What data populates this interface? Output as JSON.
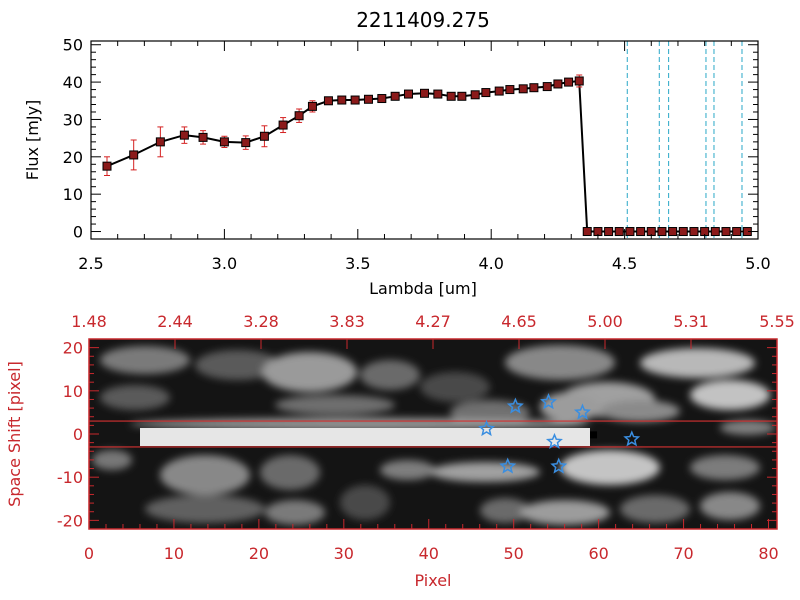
{
  "chart_data": [
    {
      "type": "line",
      "title": "2211409.275",
      "xlabel": "Lambda [um]",
      "ylabel": "Flux [mJy]",
      "xlim": [
        2.5,
        5.0
      ],
      "ylim": [
        -2,
        51
      ],
      "xticks": [
        "2.5",
        "3.0",
        "3.5",
        "4.0",
        "4.5",
        "5.0"
      ],
      "yticks": [
        "0",
        "10",
        "20",
        "30",
        "40",
        "50"
      ],
      "grid": false,
      "legend": "none",
      "colors": {
        "line": "#000000",
        "marker": "#8b1a1a",
        "errorbar": "#d42020",
        "vline": "#2aa8c8"
      },
      "x": [
        2.56,
        2.66,
        2.76,
        2.85,
        2.92,
        3.0,
        3.08,
        3.15,
        3.22,
        3.28,
        3.33,
        3.39,
        3.44,
        3.49,
        3.54,
        3.59,
        3.64,
        3.69,
        3.75,
        3.8,
        3.85,
        3.89,
        3.94,
        3.98,
        4.03,
        4.07,
        4.12,
        4.16,
        4.21,
        4.25,
        4.29,
        4.33,
        4.36,
        4.4,
        4.44,
        4.48,
        4.52,
        4.56,
        4.6,
        4.64,
        4.68,
        4.72,
        4.76,
        4.8,
        4.84,
        4.88,
        4.92,
        4.96
      ],
      "y": [
        17.5,
        20.5,
        24,
        25.8,
        25.2,
        24,
        23.8,
        25.5,
        28.5,
        31,
        33.5,
        35,
        35.2,
        35.2,
        35.4,
        35.6,
        36.2,
        36.8,
        37,
        36.8,
        36.2,
        36.2,
        36.6,
        37.2,
        37.6,
        38,
        38.2,
        38.5,
        38.8,
        39.5,
        40,
        40.3,
        0,
        0,
        0,
        0,
        0,
        0,
        0,
        0,
        0,
        0,
        0,
        0,
        0,
        0,
        0,
        0
      ],
      "yerr": [
        2.5,
        4,
        4,
        2.2,
        1.8,
        1.5,
        1.8,
        2.8,
        2,
        1.8,
        1.5,
        0.8,
        0.6,
        0.6,
        0.6,
        0.6,
        0.6,
        0.6,
        0.6,
        0.6,
        0.6,
        0.6,
        0.6,
        0.6,
        0.6,
        0.6,
        0.6,
        0.6,
        0.8,
        0.8,
        0.8,
        1.6,
        0,
        0,
        0,
        0,
        0,
        0,
        0,
        0,
        0,
        0,
        0,
        0,
        0,
        0,
        0,
        0
      ],
      "vlines": [
        4.51,
        4.63,
        4.665,
        4.805,
        4.835,
        4.94
      ]
    },
    {
      "type": "heatmap",
      "xlabel": "Pixel",
      "ylabel": "Space Shift [pixel]",
      "xlim": [
        0,
        81
      ],
      "ylim": [
        -22,
        22
      ],
      "xticks": [
        "0",
        "10",
        "20",
        "30",
        "40",
        "50",
        "60",
        "70",
        "80"
      ],
      "yticks": [
        "-20",
        "-10",
        "0",
        "10",
        "20"
      ],
      "top_axis_ticks": [
        "1.48",
        "2.44",
        "3.28",
        "3.83",
        "4.27",
        "4.65",
        "5.00",
        "5.31",
        "5.55"
      ],
      "colormap": "grayscale",
      "colors": {
        "axes": "#c8282d",
        "star": "#3a8ee0",
        "band": "#d43030"
      },
      "band_y": [
        -3,
        3
      ],
      "stars": [
        [
          46.8,
          1.2
        ],
        [
          49.3,
          -7.5
        ],
        [
          50.2,
          6.4
        ],
        [
          54.1,
          7.4
        ],
        [
          54.8,
          -1.8
        ],
        [
          55.3,
          -7.5
        ],
        [
          58.1,
          5
        ],
        [
          63.9,
          -1.2
        ]
      ],
      "square_marker": [
        59.4,
        -0.2
      ]
    }
  ]
}
